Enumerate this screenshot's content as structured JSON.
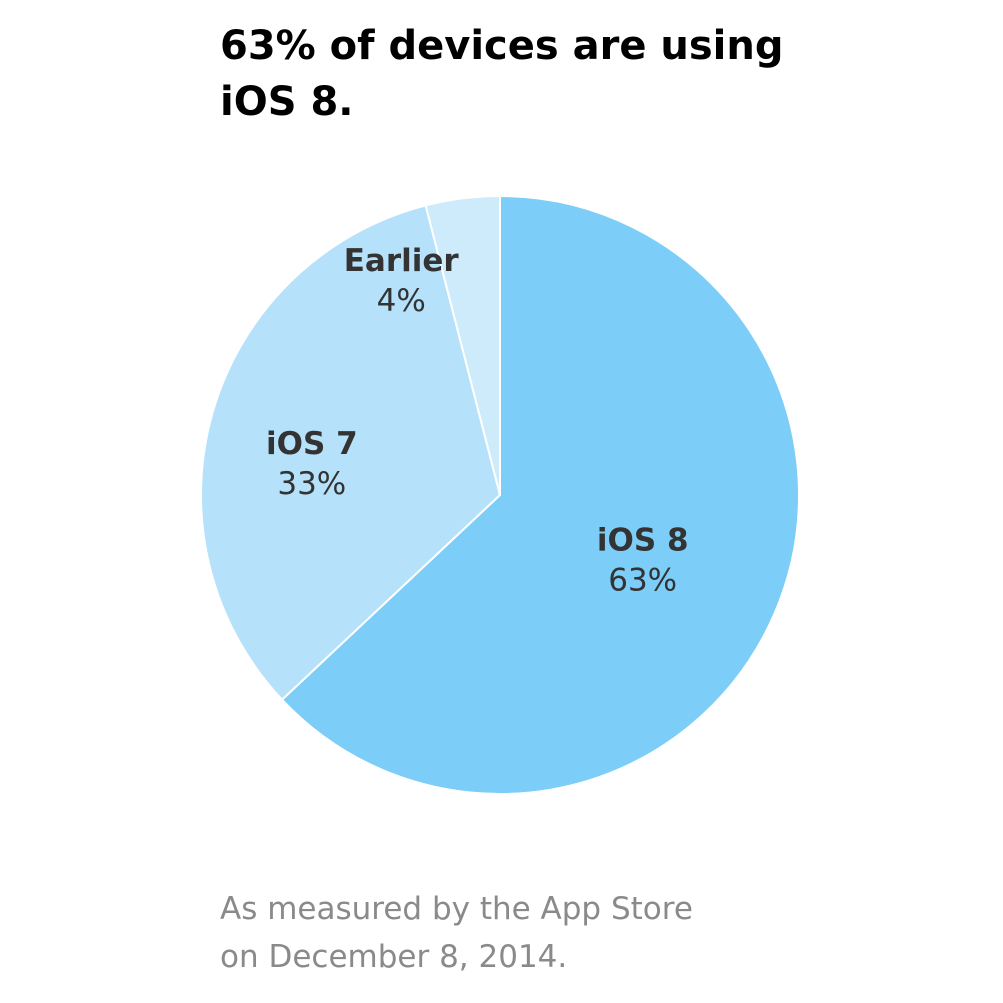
{
  "title_lines": [
    "63% of devices are using",
    "iOS 8."
  ],
  "footnote_lines": [
    "As measured by the App Store",
    "on December 8, 2014."
  ],
  "chart_data": {
    "type": "pie",
    "slices": [
      {
        "name": "iOS 8",
        "value": 63,
        "label": "63%",
        "color": "#7ccdf8"
      },
      {
        "name": "iOS 7",
        "value": 33,
        "label": "33%",
        "color": "#b5e2fa"
      },
      {
        "name": "Earlier",
        "value": 4,
        "label": "4%",
        "color": "#cdebfb"
      }
    ],
    "label_color": "#333333",
    "separator_color": "#ffffff"
  }
}
